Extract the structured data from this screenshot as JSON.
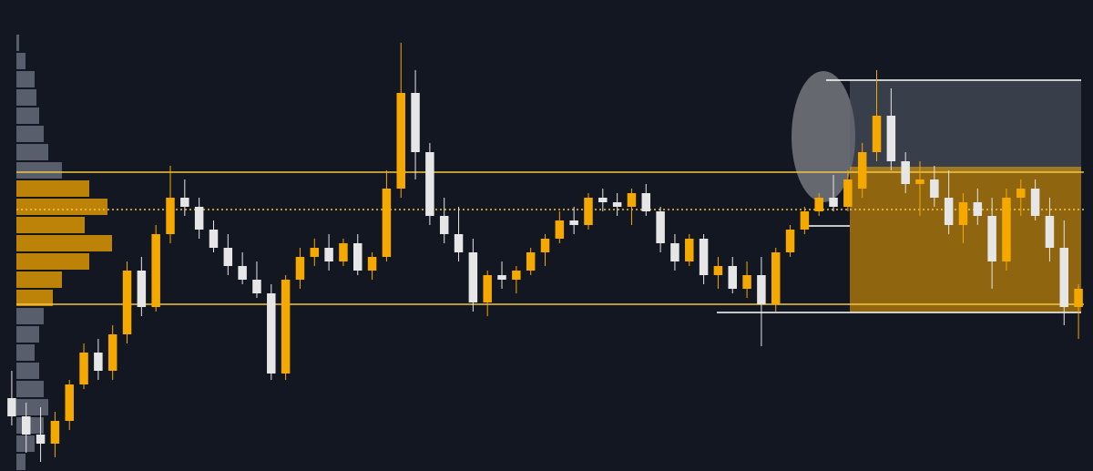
{
  "chart_data": {
    "type": "candlestick",
    "ylim": [
      0,
      517
    ],
    "up_color": "#f5a800",
    "down_color": "#e6e6e6",
    "level_color": "#f5c542",
    "candles": [
      [
        80,
        110,
        50,
        60
      ],
      [
        60,
        75,
        20,
        40
      ],
      [
        40,
        70,
        10,
        30
      ],
      [
        30,
        65,
        15,
        55
      ],
      [
        55,
        100,
        45,
        95
      ],
      [
        95,
        140,
        90,
        130
      ],
      [
        130,
        145,
        100,
        110
      ],
      [
        110,
        160,
        100,
        150
      ],
      [
        150,
        230,
        140,
        220
      ],
      [
        220,
        235,
        170,
        180
      ],
      [
        180,
        270,
        175,
        260
      ],
      [
        260,
        335,
        250,
        300
      ],
      [
        300,
        320,
        280,
        290
      ],
      [
        290,
        300,
        255,
        265
      ],
      [
        265,
        275,
        240,
        245
      ],
      [
        245,
        260,
        215,
        225
      ],
      [
        225,
        240,
        205,
        210
      ],
      [
        210,
        230,
        190,
        195
      ],
      [
        195,
        205,
        100,
        107
      ],
      [
        107,
        215,
        100,
        210
      ],
      [
        210,
        245,
        200,
        235
      ],
      [
        235,
        255,
        225,
        245
      ],
      [
        245,
        260,
        220,
        230
      ],
      [
        230,
        255,
        225,
        250
      ],
      [
        250,
        260,
        215,
        220
      ],
      [
        220,
        240,
        210,
        235
      ],
      [
        235,
        330,
        230,
        310
      ],
      [
        310,
        470,
        300,
        415
      ],
      [
        415,
        440,
        320,
        350
      ],
      [
        350,
        360,
        270,
        280
      ],
      [
        280,
        300,
        250,
        260
      ],
      [
        260,
        290,
        230,
        240
      ],
      [
        240,
        255,
        175,
        185
      ],
      [
        185,
        220,
        170,
        215
      ],
      [
        215,
        230,
        200,
        210
      ],
      [
        210,
        225,
        195,
        220
      ],
      [
        220,
        245,
        215,
        240
      ],
      [
        240,
        260,
        225,
        255
      ],
      [
        255,
        285,
        250,
        275
      ],
      [
        275,
        290,
        260,
        270
      ],
      [
        270,
        305,
        265,
        300
      ],
      [
        300,
        310,
        285,
        295
      ],
      [
        295,
        305,
        280,
        290
      ],
      [
        290,
        310,
        270,
        305
      ],
      [
        305,
        315,
        280,
        285
      ],
      [
        285,
        290,
        240,
        250
      ],
      [
        250,
        260,
        220,
        230
      ],
      [
        230,
        260,
        225,
        255
      ],
      [
        255,
        260,
        205,
        215
      ],
      [
        215,
        235,
        200,
        225
      ],
      [
        225,
        235,
        195,
        200
      ],
      [
        200,
        230,
        190,
        215
      ],
      [
        215,
        235,
        137,
        183
      ],
      [
        183,
        245,
        175,
        240
      ],
      [
        240,
        270,
        235,
        265
      ],
      [
        265,
        290,
        260,
        285
      ],
      [
        285,
        305,
        280,
        300
      ],
      [
        300,
        325,
        285,
        290
      ],
      [
        290,
        330,
        285,
        320
      ],
      [
        310,
        360,
        300,
        350
      ],
      [
        350,
        440,
        340,
        390
      ],
      [
        390,
        420,
        330,
        340
      ],
      [
        340,
        350,
        305,
        315
      ],
      [
        315,
        340,
        280,
        320
      ],
      [
        320,
        335,
        290,
        300
      ],
      [
        300,
        330,
        260,
        270
      ],
      [
        270,
        305,
        250,
        295
      ],
      [
        295,
        310,
        270,
        280
      ],
      [
        280,
        300,
        200,
        230
      ],
      [
        230,
        310,
        220,
        300
      ],
      [
        300,
        320,
        280,
        310
      ],
      [
        310,
        320,
        275,
        280
      ],
      [
        280,
        300,
        230,
        245
      ],
      [
        245,
        275,
        160,
        180
      ],
      [
        180,
        205,
        145,
        200
      ]
    ],
    "levels": [
      {
        "value": 328,
        "style": "solid"
      },
      {
        "value": 287,
        "style": "dotted"
      },
      {
        "value": 183,
        "style": "solid"
      }
    ],
    "zones": [
      {
        "top": 429,
        "bottom": 328,
        "color": "#5a5f6e"
      },
      {
        "top": 334,
        "bottom": 174,
        "color": "#f5a800"
      }
    ],
    "volume_profile": {
      "price_levels": [
        10,
        30,
        50,
        70,
        90,
        110,
        130,
        150,
        170,
        190,
        210,
        230,
        250,
        270,
        290,
        310,
        330,
        350,
        370,
        390,
        410,
        430,
        450,
        470
      ],
      "volumes": [
        10,
        20,
        30,
        35,
        30,
        25,
        20,
        25,
        30,
        40,
        50,
        80,
        105,
        75,
        100,
        80,
        50,
        35,
        30,
        25,
        22,
        20,
        10,
        3
      ],
      "grey": "#6b7080"
    }
  }
}
